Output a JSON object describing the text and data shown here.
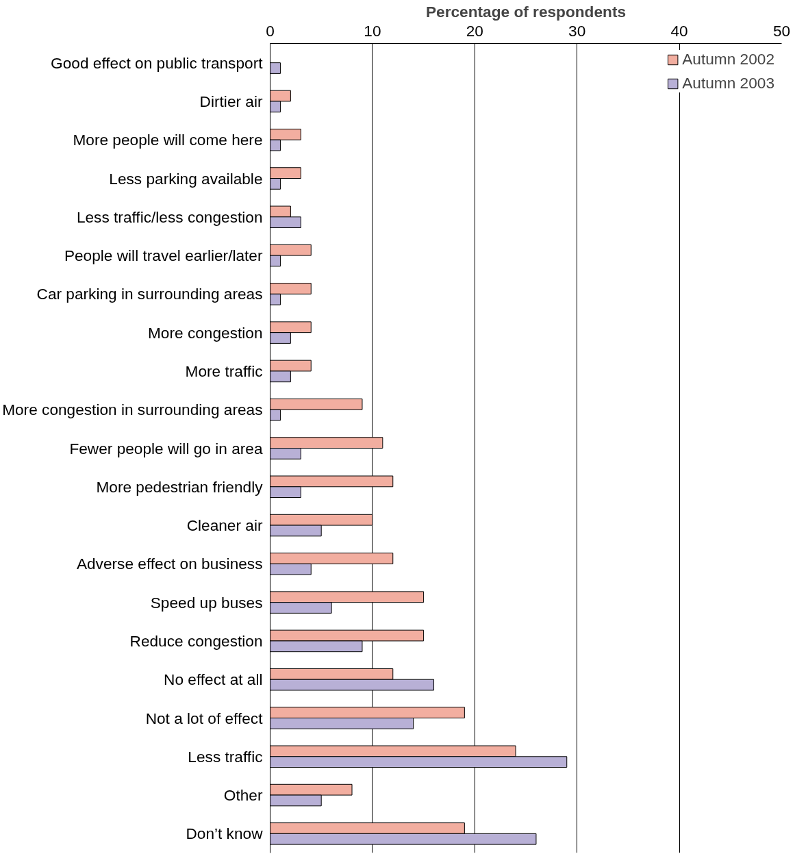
{
  "chart_data": {
    "type": "bar",
    "orientation": "horizontal",
    "xlabel": "Percentage of respondents",
    "categories": [
      "Good effect on public transport",
      "Dirtier air",
      "More people will come here",
      "Less parking available",
      "Less traffic/less congestion",
      "People will travel earlier/later",
      "Car parking in surrounding areas",
      "More congestion",
      "More traffic",
      "More congestion in surrounding areas",
      "Fewer people will go in area",
      "More pedestrian friendly",
      "Cleaner air",
      "Adverse effect on business",
      "Speed up buses",
      "Reduce congestion",
      "No effect at all",
      "Not a lot of effect",
      "Less traffic",
      "Other",
      "Don’t know"
    ],
    "series": [
      {
        "name": "Autumn 2002",
        "color": "#f2aea0",
        "values": [
          null,
          2,
          3,
          3,
          2,
          4,
          4,
          4,
          4,
          9,
          11,
          12,
          10,
          12,
          15,
          15,
          12,
          19,
          24,
          8,
          19
        ]
      },
      {
        "name": "Autumn 2003",
        "color": "#b8b0d6",
        "values": [
          1,
          1,
          1,
          1,
          3,
          1,
          1,
          2,
          2,
          1,
          3,
          3,
          5,
          4,
          6,
          9,
          16,
          14,
          29,
          5,
          26
        ]
      }
    ],
    "xlim": [
      0,
      50
    ],
    "xticks": [
      0,
      10,
      20,
      30,
      40,
      50
    ],
    "grid": "x",
    "legend": "top right"
  }
}
